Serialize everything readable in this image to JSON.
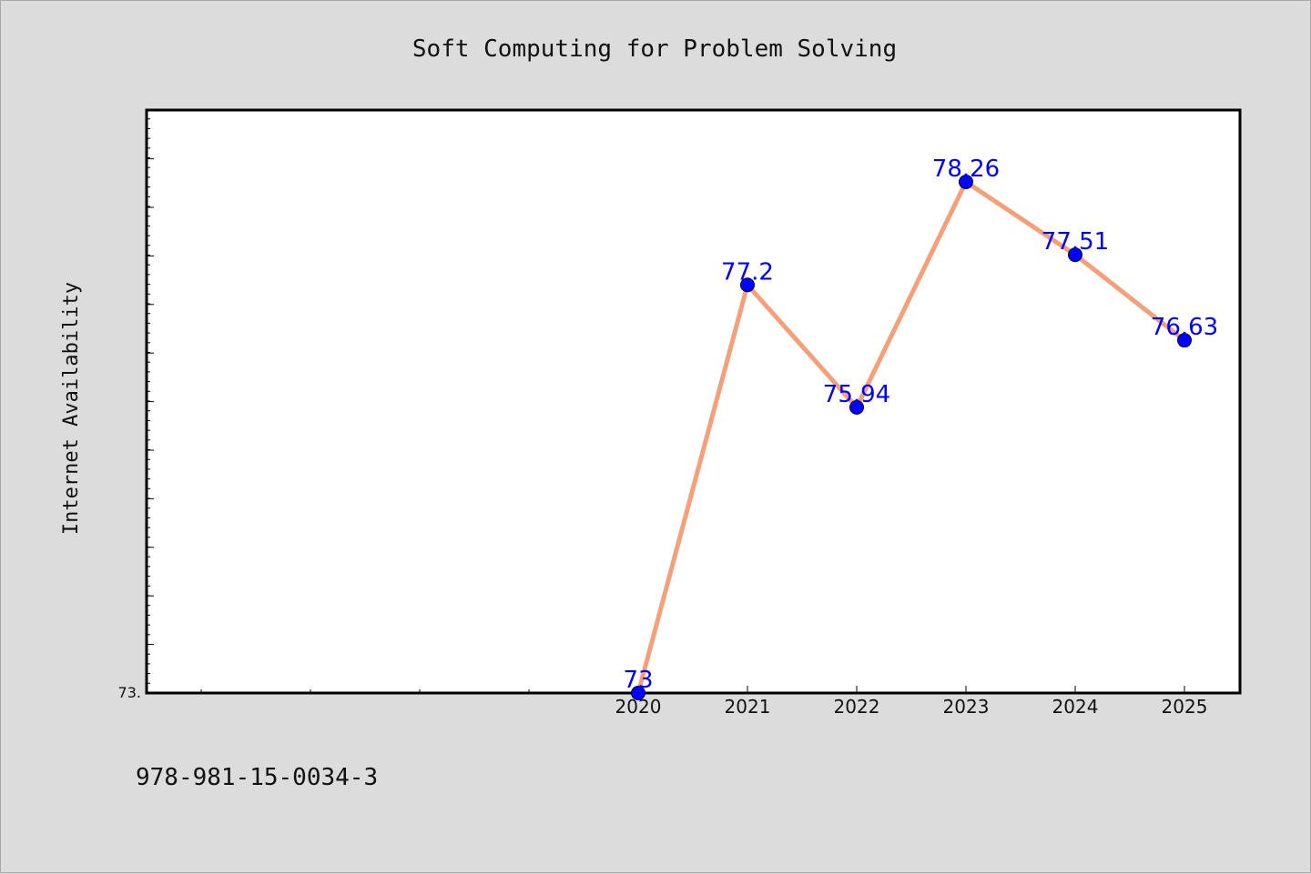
{
  "chart_data": {
    "type": "line",
    "title": "Soft Computing for Problem Solving",
    "xlabel": "",
    "ylabel": "Internet Availability",
    "categories": [
      "2020",
      "2021",
      "2022",
      "2023",
      "2024",
      "2025"
    ],
    "series": [
      {
        "values": [
          73,
          77.2,
          75.94,
          78.26,
          77.51,
          76.63
        ],
        "data_labels": [
          "73",
          "77.2",
          "75.94",
          "78.26",
          "77.51",
          "76.63"
        ],
        "line_color": "#f4a07a",
        "marker_color": "#0000ff"
      }
    ],
    "ylim": [
      73,
      79
    ],
    "ytick_labels": [
      "73."
    ],
    "grid": false,
    "legend": "none"
  },
  "footer": {
    "isbn": "978-981-15-0034-3"
  },
  "colors": {
    "background": "#dcdcdc",
    "plot_background": "#ffffff",
    "line": "#f4a07a",
    "marker": "#0000ff",
    "data_label": "#0000ff"
  }
}
